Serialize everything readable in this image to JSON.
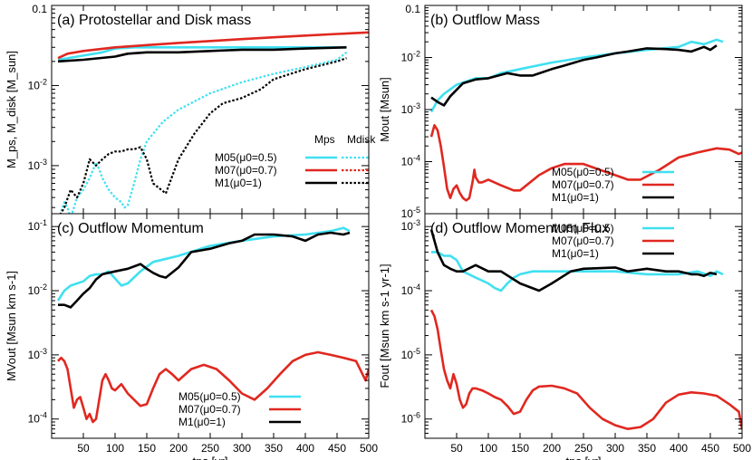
{
  "chart_data": [
    {
      "type": "line",
      "title": "(a) Protostellar and Disk mass",
      "ylabel": "M_ps, M_disk [M_sun]",
      "xlim": [
        0,
        500
      ],
      "ylim_log": [
        -3.6,
        -1
      ],
      "ytick_labels": [
        "10-3",
        "10-2",
        "0.1"
      ],
      "xtick_labels": [
        "50",
        "100",
        "150",
        "200",
        "250",
        "300",
        "350",
        "400",
        "450",
        "500"
      ],
      "legend": {
        "header_solid": "Mps",
        "header_dotted": "Mdisk",
        "entries": [
          "M05(μ0=0.5)",
          "M07(μ0=0.7)",
          "M1(μ0=1)"
        ]
      },
      "series": [
        {
          "name": "M05 Mps",
          "color": "#40e0f0",
          "dash": false,
          "x": [
            10,
            40,
            80,
            100,
            130,
            150,
            200,
            300,
            400,
            465
          ],
          "y": [
            0.021,
            0.023,
            0.026,
            0.029,
            0.03,
            0.03,
            0.03,
            0.03,
            0.03,
            0.03
          ]
        },
        {
          "name": "M07 Mps",
          "color": "#e02820",
          "dash": false,
          "x": [
            10,
            25,
            50,
            100,
            150,
            200,
            250,
            300,
            350,
            400,
            450,
            500
          ],
          "y": [
            0.022,
            0.025,
            0.027,
            0.03,
            0.032,
            0.034,
            0.036,
            0.038,
            0.04,
            0.042,
            0.044,
            0.046
          ]
        },
        {
          "name": "M1 Mps",
          "color": "#000000",
          "dash": false,
          "x": [
            10,
            50,
            100,
            120,
            150,
            200,
            250,
            300,
            350,
            400,
            465
          ],
          "y": [
            0.02,
            0.021,
            0.023,
            0.025,
            0.026,
            0.026,
            0.027,
            0.028,
            0.028,
            0.029,
            0.03
          ]
        },
        {
          "name": "M05 Mdisk",
          "color": "#40e0f0",
          "dash": true,
          "x": [
            15,
            20,
            25,
            30,
            40,
            50,
            60,
            70,
            75,
            80,
            90,
            100,
            110,
            115,
            120,
            130,
            140,
            150,
            175,
            200,
            250,
            300,
            350,
            400,
            450,
            465
          ],
          "y": [
            0.00027,
            0.00035,
            0.0003,
            0.00022,
            0.0004,
            0.0005,
            0.0007,
            0.0011,
            0.0009,
            0.0007,
            0.0005,
            0.0004,
            0.00035,
            0.0003,
            0.00032,
            0.0006,
            0.0012,
            0.002,
            0.0035,
            0.005,
            0.008,
            0.011,
            0.014,
            0.017,
            0.021,
            0.026
          ]
        },
        {
          "name": "M1 Mdisk",
          "color": "#000000",
          "dash": true,
          "x": [
            10,
            20,
            30,
            40,
            50,
            60,
            70,
            80,
            90,
            100,
            110,
            120,
            130,
            140,
            150,
            160,
            180,
            200,
            225,
            250,
            270,
            300,
            330,
            350,
            400,
            450,
            465
          ],
          "y": [
            0.00022,
            0.0003,
            0.0005,
            0.0004,
            0.0006,
            0.0012,
            0.001,
            0.0012,
            0.0014,
            0.0015,
            0.0015,
            0.0016,
            0.0016,
            0.0017,
            0.0012,
            0.0006,
            0.00045,
            0.0012,
            0.0025,
            0.0045,
            0.006,
            0.007,
            0.009,
            0.012,
            0.016,
            0.02,
            0.022
          ]
        }
      ]
    },
    {
      "type": "line",
      "title": "(b) Outflow Mass",
      "ylabel": "Mout [Msun]",
      "xlim": [
        0,
        500
      ],
      "ylim_log": [
        -5,
        -1
      ],
      "ytick_labels": [
        "10-5",
        "10-4",
        "10-3",
        "10-2",
        "0.1"
      ],
      "xtick_labels": [
        "50",
        "100",
        "150",
        "200",
        "250",
        "300",
        "350",
        "400",
        "450",
        "500"
      ],
      "legend": {
        "entries": [
          "M05(μ0=0.5)",
          "M07(μ0=0.7)",
          "M1(μ0=1)"
        ]
      },
      "series": [
        {
          "name": "M05(μ0=0.5)",
          "color": "#40e0f0",
          "x": [
            10,
            20,
            30,
            50,
            80,
            100,
            120,
            150,
            200,
            250,
            300,
            350,
            400,
            420,
            440,
            460,
            470
          ],
          "y": [
            0.0009,
            0.0015,
            0.002,
            0.003,
            0.004,
            0.004,
            0.005,
            0.006,
            0.008,
            0.01,
            0.012,
            0.014,
            0.016,
            0.02,
            0.018,
            0.022,
            0.02
          ]
        },
        {
          "name": "M07(μ0=0.7)",
          "color": "#e02820",
          "x": [
            10,
            15,
            20,
            25,
            30,
            35,
            40,
            45,
            50,
            55,
            60,
            65,
            70,
            75,
            78,
            80,
            85,
            90,
            100,
            120,
            140,
            150,
            160,
            180,
            200,
            220,
            250,
            275,
            300,
            320,
            340,
            370,
            400,
            430,
            460,
            480,
            495,
            500
          ],
          "y": [
            0.0003,
            0.0005,
            0.0004,
            0.0002,
            8e-05,
            3e-05,
            2e-05,
            3e-05,
            3.5e-05,
            2.5e-05,
            2e-05,
            1.8e-05,
            2e-05,
            4e-05,
            7e-05,
            5e-05,
            4e-05,
            4e-05,
            4.5e-05,
            3.5e-05,
            2.8e-05,
            2.8e-05,
            3.5e-05,
            5.5e-05,
            7.5e-05,
            9e-05,
            9e-05,
            7e-05,
            5.5e-05,
            4.5e-05,
            4.5e-05,
            7e-05,
            0.00012,
            0.00015,
            0.00018,
            0.00017,
            0.00014,
            0.00015
          ]
        },
        {
          "name": "M1(μ0=1)",
          "color": "#000000",
          "x": [
            10,
            20,
            30,
            40,
            60,
            80,
            100,
            130,
            150,
            170,
            200,
            220,
            250,
            270,
            300,
            320,
            350,
            380,
            400,
            420,
            440,
            450,
            460
          ],
          "y": [
            0.0017,
            0.0014,
            0.0012,
            0.0018,
            0.0032,
            0.0038,
            0.004,
            0.005,
            0.0045,
            0.0045,
            0.006,
            0.007,
            0.009,
            0.01,
            0.012,
            0.013,
            0.015,
            0.0145,
            0.014,
            0.013,
            0.016,
            0.014,
            0.017
          ]
        }
      ]
    },
    {
      "type": "line",
      "title": "(c) Outflow Momentum",
      "ylabel": "MVout [Msun km s-1]",
      "xlim": [
        0,
        500
      ],
      "ylim_log": [
        -4.3,
        -0.8
      ],
      "ytick_labels": [
        "10-4",
        "10-3",
        "10-2",
        "10-1"
      ],
      "xtick_labels": [
        "50",
        "100",
        "150",
        "200",
        "250",
        "300",
        "350",
        "400",
        "450",
        "500"
      ],
      "xlabel": "tps [yr]",
      "legend": {
        "entries": [
          "M05(μ0=0.5)",
          "M07(μ0=0.7)",
          "M1(μ0=1)"
        ]
      },
      "series": [
        {
          "name": "M05(μ0=0.5)",
          "color": "#40e0f0",
          "x": [
            10,
            20,
            30,
            50,
            60,
            70,
            80,
            90,
            110,
            120,
            140,
            160,
            200,
            250,
            300,
            350,
            400,
            440,
            460,
            470
          ],
          "y": [
            0.007,
            0.01,
            0.012,
            0.014,
            0.017,
            0.018,
            0.018,
            0.02,
            0.012,
            0.013,
            0.02,
            0.028,
            0.035,
            0.05,
            0.06,
            0.07,
            0.075,
            0.085,
            0.095,
            0.085
          ]
        },
        {
          "name": "M07(μ0=0.7)",
          "color": "#e02820",
          "x": [
            10,
            15,
            20,
            25,
            30,
            35,
            40,
            45,
            50,
            55,
            60,
            65,
            70,
            75,
            80,
            85,
            90,
            95,
            100,
            110,
            120,
            130,
            140,
            150,
            160,
            170,
            180,
            190,
            200,
            220,
            240,
            260,
            280,
            300,
            320,
            340,
            360,
            380,
            400,
            420,
            440,
            460,
            480,
            495,
            500
          ],
          "y": [
            0.0008,
            0.0009,
            0.0008,
            0.0006,
            0.0003,
            0.00015,
            0.0002,
            0.00022,
            0.00015,
            0.0001,
            0.00012,
            9e-05,
            0.0001,
            0.0002,
            0.0004,
            0.0005,
            0.0004,
            0.0003,
            0.00028,
            0.00035,
            0.00025,
            0.0002,
            0.00016,
            0.00017,
            0.0003,
            0.0005,
            0.0006,
            0.0005,
            0.0004,
            0.0006,
            0.0007,
            0.0006,
            0.0004,
            0.00025,
            0.0002,
            0.0003,
            0.0005,
            0.0008,
            0.001,
            0.0011,
            0.001,
            0.0009,
            0.0008,
            0.0004,
            0.0006
          ]
        },
        {
          "name": "M1(μ0=1)",
          "color": "#000000",
          "x": [
            10,
            20,
            30,
            40,
            50,
            60,
            70,
            80,
            100,
            120,
            140,
            150,
            160,
            170,
            180,
            200,
            220,
            250,
            280,
            300,
            320,
            350,
            380,
            400,
            420,
            440,
            460,
            470
          ],
          "y": [
            0.006,
            0.006,
            0.0055,
            0.007,
            0.009,
            0.011,
            0.015,
            0.018,
            0.02,
            0.022,
            0.026,
            0.022,
            0.019,
            0.017,
            0.016,
            0.023,
            0.04,
            0.045,
            0.055,
            0.06,
            0.075,
            0.075,
            0.07,
            0.06,
            0.075,
            0.08,
            0.075,
            0.08
          ]
        }
      ]
    },
    {
      "type": "line",
      "title": "(d) Outflow Momentum Flux",
      "ylabel": "Fout [Msun km s-1 yr-1]",
      "xlim": [
        0,
        500
      ],
      "ylim_log": [
        -6.3,
        -2.8
      ],
      "ytick_labels": [
        "10-6",
        "10-5",
        "10-4",
        "10-3"
      ],
      "xtick_labels": [
        "50",
        "100",
        "150",
        "200",
        "250",
        "300",
        "350",
        "400",
        "450",
        "500"
      ],
      "xlabel": "tps [yr]",
      "legend": {
        "entries": [
          "M05(μ0=0.5)",
          "M07(μ0=0.7)",
          "M1(μ0=1)"
        ]
      },
      "series": [
        {
          "name": "M05(μ0=0.5)",
          "color": "#40e0f0",
          "x": [
            10,
            20,
            30,
            40,
            50,
            60,
            80,
            100,
            110,
            120,
            130,
            140,
            150,
            170,
            200,
            250,
            300,
            350,
            400,
            430,
            450,
            460,
            470
          ],
          "y": [
            0.0004,
            0.0004,
            0.00035,
            0.00035,
            0.0003,
            0.0002,
            0.00016,
            0.00013,
            0.00011,
            0.0001,
            0.00013,
            0.00016,
            0.00018,
            0.0002,
            0.0002,
            0.0002,
            0.0002,
            0.00018,
            0.00018,
            0.0002,
            0.00017,
            0.0002,
            0.00018
          ]
        },
        {
          "name": "M07(μ0=0.7)",
          "color": "#e02820",
          "x": [
            10,
            15,
            20,
            25,
            30,
            35,
            40,
            45,
            50,
            55,
            60,
            65,
            70,
            75,
            80,
            90,
            100,
            110,
            120,
            130,
            140,
            150,
            160,
            170,
            180,
            200,
            220,
            240,
            260,
            280,
            300,
            320,
            340,
            360,
            380,
            400,
            420,
            440,
            460,
            480,
            495,
            500
          ],
          "y": [
            5e-05,
            4e-05,
            2.5e-05,
            1.2e-05,
            6e-06,
            4e-06,
            3e-06,
            5e-06,
            3.5e-06,
            2e-06,
            1.5e-06,
            1.7e-06,
            2.5e-06,
            3e-06,
            3e-06,
            2.8e-06,
            2.5e-06,
            2.2e-06,
            2e-06,
            1.6e-06,
            1.2e-06,
            1.3e-06,
            2e-06,
            2.8e-06,
            3.2e-06,
            3.3e-06,
            3e-06,
            2.5e-06,
            1.5e-06,
            1e-06,
            8e-07,
            7e-07,
            7.5e-07,
            1e-06,
            1.8e-06,
            2.4e-06,
            2.6e-06,
            2.5e-06,
            2.3e-06,
            1.7e-06,
            1.3e-06,
            7e-07
          ]
        },
        {
          "name": "M1(μ0=1)",
          "color": "#000000",
          "x": [
            10,
            20,
            30,
            40,
            50,
            60,
            80,
            100,
            120,
            150,
            180,
            200,
            230,
            250,
            300,
            320,
            350,
            380,
            400,
            420,
            430,
            440,
            450,
            460
          ],
          "y": [
            0.0009,
            0.0004,
            0.00025,
            0.00022,
            0.0002,
            0.0002,
            0.00025,
            0.0002,
            0.0002,
            0.00013,
            0.0001,
            0.00013,
            0.0002,
            0.00022,
            0.00023,
            0.0002,
            0.00022,
            0.0002,
            0.0002,
            0.00018,
            0.00018,
            0.00017,
            0.00019,
            0.00018
          ]
        }
      ]
    }
  ]
}
